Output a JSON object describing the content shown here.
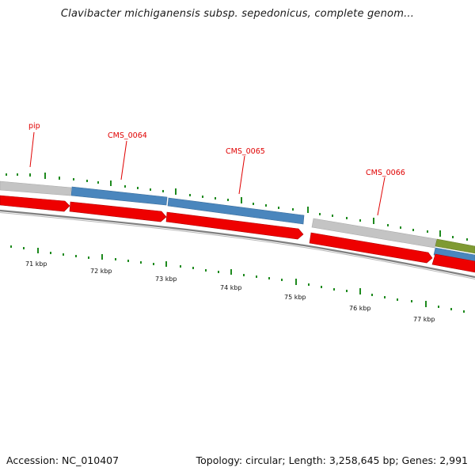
{
  "title": "Clavibacter michiganensis subsp. sepedonicus, complete genom...",
  "gene_labels": [
    "pip",
    "CMS_0064",
    "CMS_0065",
    "CMS_0066"
  ],
  "kbp_labels": [
    "71 kbp",
    "72 kbp",
    "73 kbp",
    "74 kbp",
    "75 kbp",
    "76 kbp",
    "77 kbp"
  ],
  "footer": {
    "accession": "Accession: NC_010407",
    "summary": "Topology: circular; Length: 3,258,645 bp; Genes: 2,991"
  },
  "colors": {
    "label_red": "#e00000",
    "arrow_red": "#ee0000",
    "gene_blue": "#4a86bd",
    "gene_grey": "#c4c4c4",
    "gene_olive": "#7f9a33",
    "tick_green": "#1e8a1e",
    "backbone": "#808080"
  }
}
